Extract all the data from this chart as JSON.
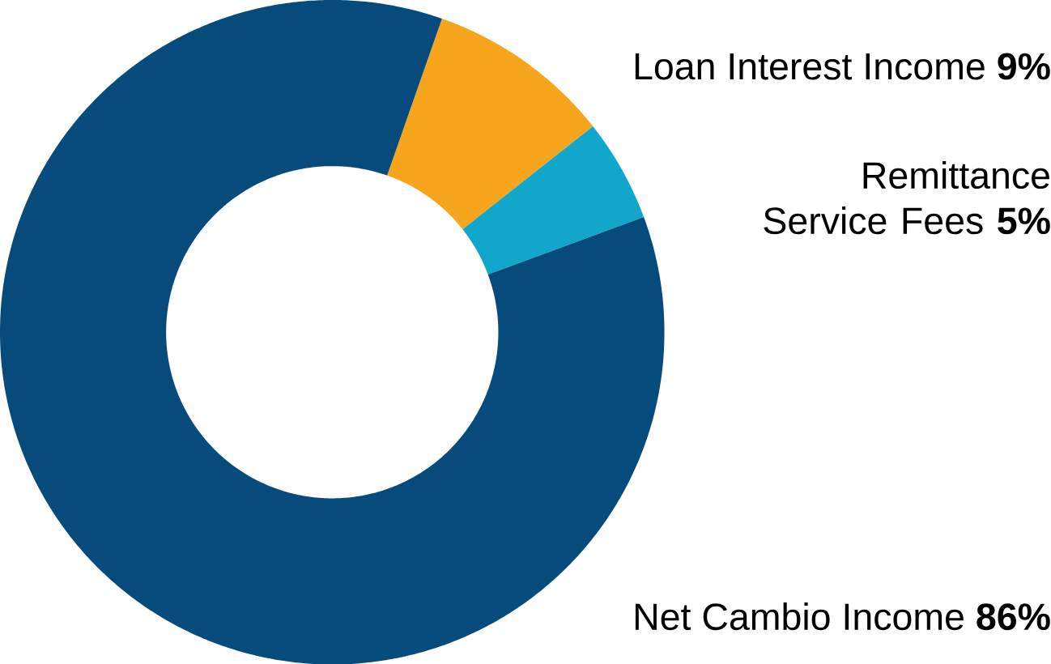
{
  "chart_data": {
    "type": "donut",
    "categories": [
      "Loan Interest Income",
      "Remittance Service Fees",
      "Net Cambio Income"
    ],
    "values": [
      9,
      5,
      86
    ],
    "colors": [
      "#f6a51d",
      "#13a6cb",
      "#064b7b"
    ],
    "value_labels": [
      "9%",
      "5%",
      "86%"
    ]
  }
}
